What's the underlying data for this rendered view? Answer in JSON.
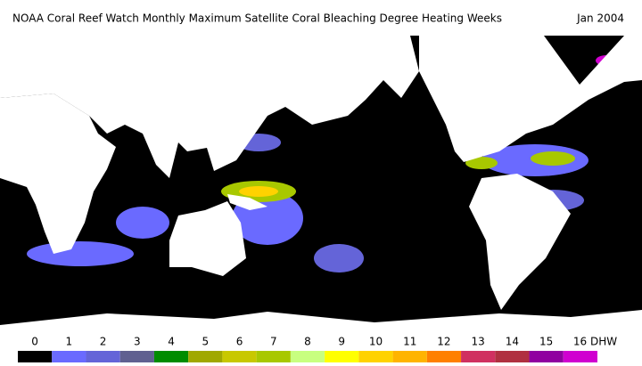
{
  "header": {
    "title": "NOAA Coral Reef Watch Monthly Maximum Satellite Coral Bleaching Degree Heating Weeks",
    "date": "Jan 2004"
  },
  "legend": {
    "labels": [
      "0",
      "1",
      "2",
      "3",
      "4",
      "5",
      "6",
      "7",
      "8",
      "9",
      "10",
      "11",
      "12",
      "13",
      "14",
      "15",
      "16 DHW"
    ],
    "colors": [
      "#000000",
      "#6a6aff",
      "#6464d8",
      "#606090",
      "#008c00",
      "#a0a800",
      "#c8c800",
      "#a8c800",
      "#c8ff80",
      "#ffff00",
      "#ffd200",
      "#ffb400",
      "#ff8000",
      "#d03060",
      "#b03040",
      "#9000a0",
      "#d000d0"
    ]
  }
}
